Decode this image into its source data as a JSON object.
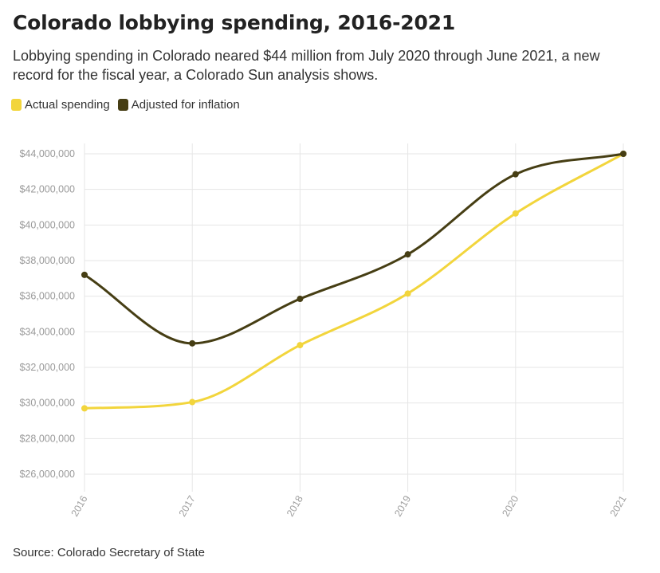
{
  "title": "Colorado lobbying spending, 2016-2021",
  "subtitle": "Lobbying spending in Colorado neared $44 million from July 2020 through June 2021, a new record for the fiscal year, a Colorado Sun analysis shows.",
  "source": "Source: Colorado Secretary of State",
  "colors": {
    "actual": "#f2d53c",
    "adjusted": "#463e14",
    "grid": "#e6e6e6",
    "axis": "#cccccc"
  },
  "chart_data": {
    "type": "line",
    "x": [
      "2016",
      "2017",
      "2018",
      "2019",
      "2020",
      "2021"
    ],
    "series": [
      {
        "name": "Actual spending",
        "color": "#f2d53c",
        "values": [
          29700000,
          30050000,
          33250000,
          36150000,
          40650000,
          44000000
        ]
      },
      {
        "name": "Adjusted for inflation",
        "color": "#463e14",
        "values": [
          37200000,
          33350000,
          35850000,
          38350000,
          42850000,
          44000000
        ]
      }
    ],
    "yticks": [
      "$26,000,000",
      "$28,000,000",
      "$30,000,000",
      "$32,000,000",
      "$34,000,000",
      "$36,000,000",
      "$38,000,000",
      "$40,000,000",
      "$42,000,000",
      "$44,000,000"
    ],
    "ytick_values": [
      26000000,
      28000000,
      30000000,
      32000000,
      34000000,
      36000000,
      38000000,
      40000000,
      42000000,
      44000000
    ],
    "ylim": [
      25000000,
      45000000
    ],
    "grid": true,
    "legend": "top-left",
    "xlabel": "",
    "ylabel": ""
  }
}
